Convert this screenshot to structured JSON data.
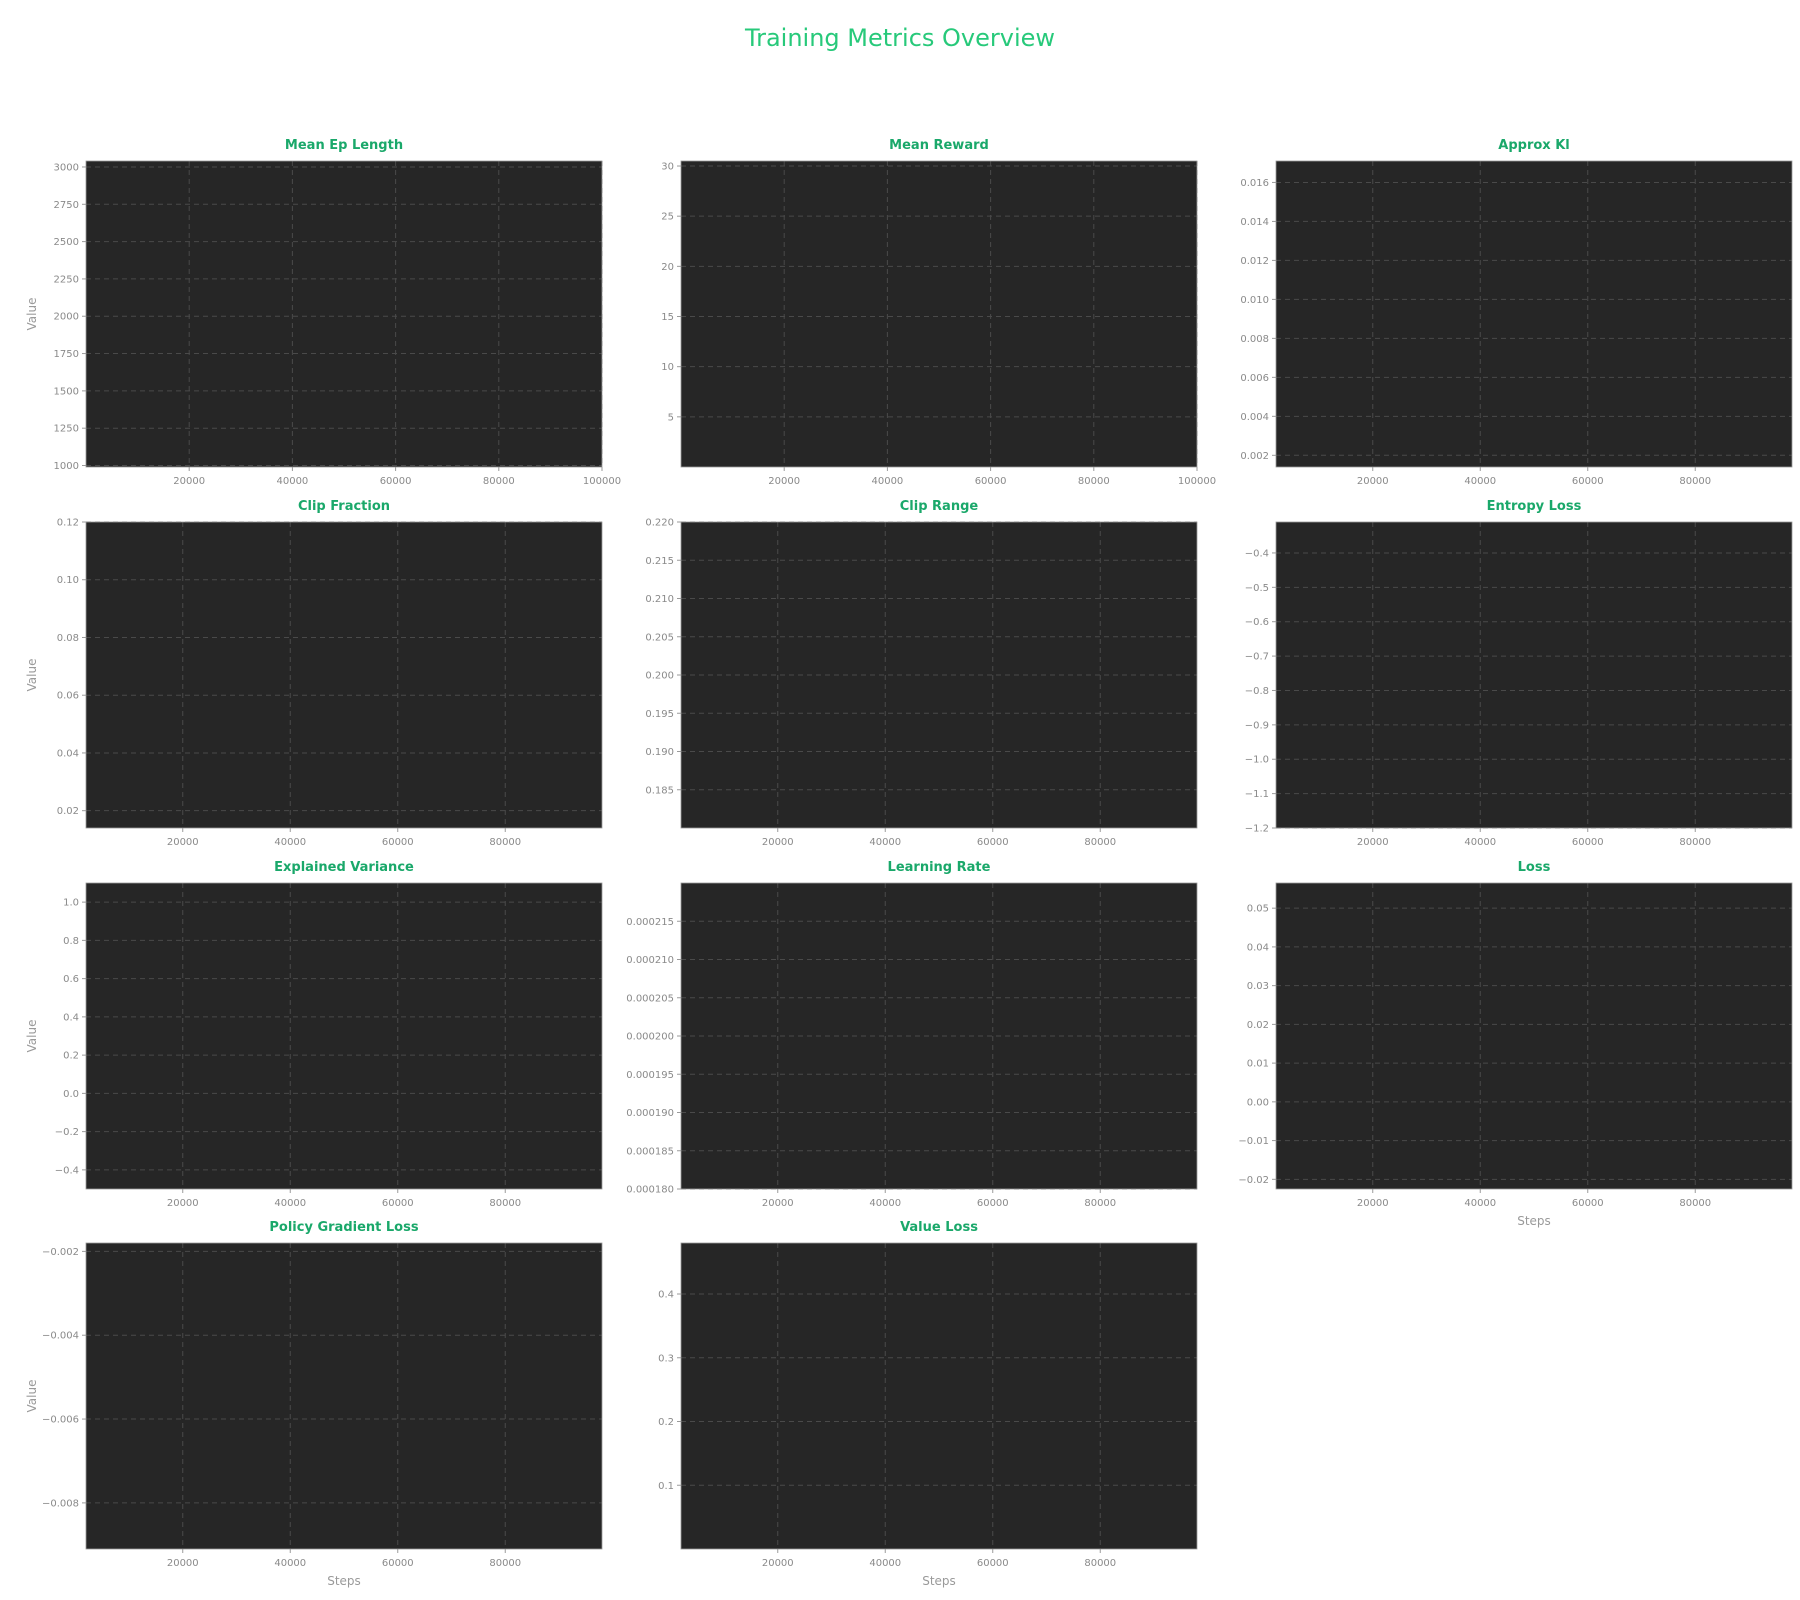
{
  "figure_title": "Training Metrics Overview",
  "colors": {
    "title": "#27c97a",
    "subplot_title": "#1aa86a",
    "plot_bg": "#262626",
    "grid": "#4a4a4a",
    "tick_text": "#8a8a8a"
  },
  "chart_data": [
    {
      "type": "line",
      "title": "Mean Ep Length",
      "xlabel": "",
      "ylabel": "Value",
      "grid": true,
      "series": [],
      "xlim": [
        0,
        100000
      ],
      "xticks": [
        20000,
        40000,
        60000,
        80000,
        100000
      ],
      "ylim": [
        990,
        3040
      ],
      "yticks": [
        1000,
        1250,
        1500,
        1750,
        2000,
        2250,
        2500,
        2750,
        3000
      ]
    },
    {
      "type": "line",
      "title": "Mean Reward",
      "xlabel": "",
      "ylabel": "",
      "grid": true,
      "series": [],
      "xlim": [
        0,
        100000
      ],
      "xticks": [
        20000,
        40000,
        60000,
        80000,
        100000
      ],
      "ylim": [
        0,
        30.5
      ],
      "yticks": [
        5,
        10,
        15,
        20,
        25,
        30
      ]
    },
    {
      "type": "line",
      "title": "Approx Kl",
      "xlabel": "",
      "ylabel": "",
      "grid": true,
      "series": [],
      "xlim": [
        2000,
        98000
      ],
      "xticks": [
        20000,
        40000,
        60000,
        80000
      ],
      "ylim": [
        0.0014,
        0.0171
      ],
      "yticks": [
        0.002,
        0.004,
        0.006,
        0.008,
        0.01,
        0.012,
        0.014,
        0.016
      ]
    },
    {
      "type": "line",
      "title": "Clip Fraction",
      "xlabel": "",
      "ylabel": "Value",
      "grid": true,
      "series": [],
      "xlim": [
        2000,
        98000
      ],
      "xticks": [
        20000,
        40000,
        60000,
        80000
      ],
      "ylim": [
        0.014,
        0.12
      ],
      "yticks": [
        0.02,
        0.04,
        0.06,
        0.08,
        0.1,
        0.12
      ]
    },
    {
      "type": "line",
      "title": "Clip Range",
      "xlabel": "",
      "ylabel": "",
      "grid": true,
      "series": [],
      "xlim": [
        2000,
        98000
      ],
      "xticks": [
        20000,
        40000,
        60000,
        80000
      ],
      "ylim": [
        0.18,
        0.22
      ],
      "yticks": [
        0.185,
        0.19,
        0.195,
        0.2,
        0.205,
        0.21,
        0.215,
        0.22
      ]
    },
    {
      "type": "line",
      "title": "Entropy Loss",
      "xlabel": "",
      "ylabel": "",
      "grid": true,
      "series": [],
      "xlim": [
        2000,
        98000
      ],
      "xticks": [
        20000,
        40000,
        60000,
        80000
      ],
      "ylim": [
        -1.2,
        -0.31
      ],
      "yticks": [
        -1.2,
        -1.1,
        -1.0,
        -0.9,
        -0.8,
        -0.7,
        -0.6,
        -0.5,
        -0.4
      ]
    },
    {
      "type": "line",
      "title": "Explained Variance",
      "xlabel": "",
      "ylabel": "Value",
      "grid": true,
      "series": [],
      "xlim": [
        2000,
        98000
      ],
      "xticks": [
        20000,
        40000,
        60000,
        80000
      ],
      "ylim": [
        -0.5,
        1.1
      ],
      "yticks": [
        -0.4,
        -0.2,
        0.0,
        0.2,
        0.4,
        0.6,
        0.8,
        1.0
      ]
    },
    {
      "type": "line",
      "title": "Learning Rate",
      "xlabel": "",
      "ylabel": "",
      "grid": true,
      "series": [],
      "xlim": [
        2000,
        98000
      ],
      "xticks": [
        20000,
        40000,
        60000,
        80000
      ],
      "ylim": [
        0.00018,
        0.00022
      ],
      "yticks": [
        0.00018,
        0.000185,
        0.00019,
        0.000195,
        0.0002,
        0.000205,
        0.00021,
        0.000215
      ]
    },
    {
      "type": "line",
      "title": "Loss",
      "xlabel": "Steps",
      "ylabel": "",
      "grid": true,
      "series": [],
      "xlim": [
        2000,
        98000
      ],
      "xticks": [
        20000,
        40000,
        60000,
        80000
      ],
      "ylim": [
        -0.0225,
        0.0565
      ],
      "yticks": [
        -0.02,
        -0.01,
        0.0,
        0.01,
        0.02,
        0.03,
        0.04,
        0.05
      ]
    },
    {
      "type": "line",
      "title": "Policy Gradient Loss",
      "xlabel": "Steps",
      "ylabel": "Value",
      "grid": true,
      "series": [],
      "xlim": [
        2000,
        98000
      ],
      "xticks": [
        20000,
        40000,
        60000,
        80000
      ],
      "ylim": [
        -0.0091,
        -0.0018
      ],
      "yticks": [
        -0.002,
        -0.004,
        -0.006,
        -0.008
      ]
    },
    {
      "type": "line",
      "title": "Value Loss",
      "xlabel": "Steps",
      "ylabel": "",
      "grid": true,
      "series": [],
      "xlim": [
        2000,
        98000
      ],
      "xticks": [
        20000,
        40000,
        60000,
        80000
      ],
      "ylim": [
        0.0,
        0.48
      ],
      "yticks": [
        0.1,
        0.2,
        0.3,
        0.4
      ]
    }
  ]
}
